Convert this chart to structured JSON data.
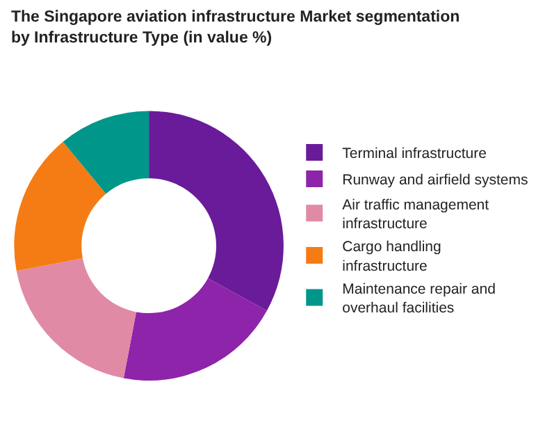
{
  "chart_data": {
    "type": "donut",
    "title": "The Singapore aviation infrastructure Market segmentation by Infrastructure Type (in value %)",
    "categories": [
      "Terminal infrastructure",
      "Runway and airfield systems",
      "Air traffic management infrastructure",
      "Cargo handling infrastructure",
      "Maintenance repair and overhaul facilities"
    ],
    "values": [
      33,
      20,
      19,
      17,
      11
    ],
    "colors": [
      "#6a1b9a",
      "#8e24aa",
      "#e08aa6",
      "#f57c14",
      "#00968a"
    ],
    "legend": "right"
  }
}
